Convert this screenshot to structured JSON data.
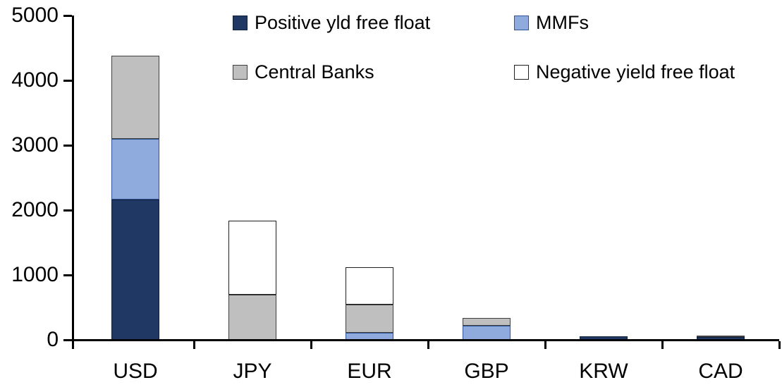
{
  "chart_data": {
    "type": "bar",
    "stacked": true,
    "title": "",
    "xlabel": "",
    "ylabel": "",
    "grid": false,
    "legend_position": "top",
    "ylim": [
      0,
      5000
    ],
    "yticks": [
      0,
      1000,
      2000,
      3000,
      4000,
      5000
    ],
    "categories": [
      "USD",
      "JPY",
      "EUR",
      "GBP",
      "KRW",
      "CAD"
    ],
    "series": [
      {
        "name": "Positive yld free float",
        "color": "#1F3864",
        "border_color": "#10203C",
        "values": [
          2160,
          0,
          0,
          0,
          50,
          45
        ]
      },
      {
        "name": "MMFs",
        "color": "#8FAADC",
        "border_color": "#2F5597",
        "values": [
          940,
          0,
          110,
          220,
          0,
          0
        ]
      },
      {
        "name": "Central Banks",
        "color": "#BFBFBF",
        "border_color": "#3F3F3F",
        "values": [
          1280,
          700,
          435,
          115,
          0,
          25
        ]
      },
      {
        "name": "Negative yield free float",
        "color": "#FFFFFF",
        "border_color": "#1F1F1F",
        "values": [
          0,
          1140,
          575,
          0,
          0,
          0
        ]
      }
    ],
    "totals": [
      4380,
      1840,
      1120,
      335,
      50,
      70
    ]
  },
  "colors": {
    "axis": "#000000",
    "background": "#FFFFFF",
    "text": "#000000"
  }
}
